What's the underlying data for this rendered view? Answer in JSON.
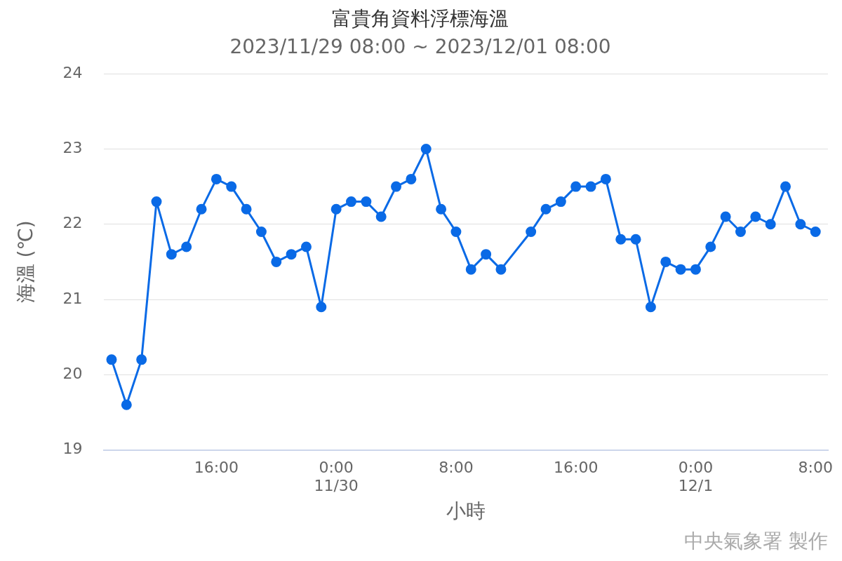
{
  "chart_data": {
    "type": "line",
    "title": "富貴角資料浮標海溫",
    "subtitle": "2023/11/29 08:00 ~ 2023/12/01 08:00",
    "xlabel": "小時",
    "ylabel": "海溫 (℃)",
    "annotations": [
      "中央氣象署 製作"
    ],
    "x": [
      "2023-11-29T09:00",
      "2023-11-29T10:00",
      "2023-11-29T11:00",
      "2023-11-29T12:00",
      "2023-11-29T13:00",
      "2023-11-29T14:00",
      "2023-11-29T15:00",
      "2023-11-29T16:00",
      "2023-11-29T17:00",
      "2023-11-29T18:00",
      "2023-11-29T19:00",
      "2023-11-29T20:00",
      "2023-11-29T21:00",
      "2023-11-29T22:00",
      "2023-11-29T23:00",
      "2023-11-30T00:00",
      "2023-11-30T01:00",
      "2023-11-30T02:00",
      "2023-11-30T03:00",
      "2023-11-30T04:00",
      "2023-11-30T05:00",
      "2023-11-30T06:00",
      "2023-11-30T07:00",
      "2023-11-30T08:00",
      "2023-11-30T09:00",
      "2023-11-30T10:00",
      "2023-11-30T11:00",
      "2023-11-30T13:00",
      "2023-11-30T14:00",
      "2023-11-30T15:00",
      "2023-11-30T16:00",
      "2023-11-30T17:00",
      "2023-11-30T18:00",
      "2023-11-30T19:00",
      "2023-11-30T20:00",
      "2023-11-30T21:00",
      "2023-11-30T22:00",
      "2023-11-30T23:00",
      "2023-12-01T00:00",
      "2023-12-01T01:00",
      "2023-12-01T02:00",
      "2023-12-01T03:00",
      "2023-12-01T04:00",
      "2023-12-01T05:00",
      "2023-12-01T06:00",
      "2023-12-01T07:00",
      "2023-12-01T08:00"
    ],
    "series": [
      {
        "color": "#0a6ae6",
        "values": [
          20.2,
          19.6,
          20.2,
          22.3,
          21.6,
          21.7,
          22.2,
          22.6,
          22.5,
          22.2,
          21.9,
          21.5,
          21.6,
          21.7,
          20.9,
          22.2,
          22.3,
          22.3,
          22.1,
          22.5,
          22.6,
          23.0,
          22.2,
          21.9,
          21.4,
          21.6,
          21.4,
          21.9,
          22.2,
          22.3,
          22.5,
          22.5,
          22.6,
          21.8,
          21.8,
          20.9,
          21.5,
          21.4,
          21.4,
          21.7,
          22.1,
          21.9,
          22.1,
          22.0,
          22.5,
          22.0,
          21.9
        ]
      }
    ],
    "xlim": [
      "2023-11-29T08:28",
      "2023-12-01T08:50"
    ],
    "xticks": [
      {
        "value": "2023-11-29T16:00",
        "label": "16:00"
      },
      {
        "value": "2023-11-30T00:00",
        "label": "0:00\n11/30"
      },
      {
        "value": "2023-11-30T08:00",
        "label": "8:00"
      },
      {
        "value": "2023-11-30T16:00",
        "label": "16:00"
      },
      {
        "value": "2023-12-01T00:00",
        "label": "0:00\n12/1"
      },
      {
        "value": "2023-12-01T08:00",
        "label": "8:00"
      }
    ],
    "ylim": [
      19,
      24
    ],
    "yticks": [
      19,
      20,
      21,
      22,
      23,
      24
    ],
    "grid": "y",
    "legend": false,
    "marker": "circle",
    "line_style": "solid"
  }
}
